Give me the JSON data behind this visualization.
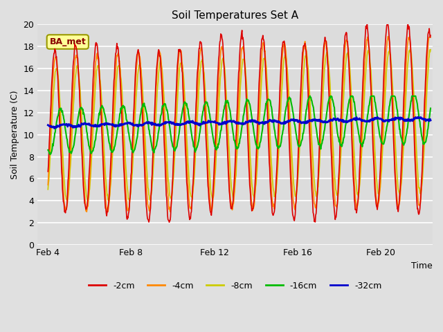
{
  "title": "Soil Temperatures Set A",
  "xlabel": "Time",
  "ylabel": "Soil Temperature (C)",
  "ylim": [
    0,
    20
  ],
  "xlim_days": [
    3.5,
    22.5
  ],
  "annotation": "BA_met",
  "legend_labels": [
    "-2cm",
    "-4cm",
    "-8cm",
    "-16cm",
    "-32cm"
  ],
  "legend_colors": [
    "#dd0000",
    "#ff8800",
    "#cccc00",
    "#00bb00",
    "#0000cc"
  ],
  "background_color": "#e0e0e0",
  "plot_bg_color": "#dcdcdc",
  "grid_color": "#ffffff",
  "xtick_labels": [
    "Feb 4",
    "Feb 8",
    "Feb 12",
    "Feb 16",
    "Feb 20"
  ],
  "xtick_positions": [
    4,
    8,
    12,
    16,
    20
  ],
  "yticks": [
    0,
    2,
    4,
    6,
    8,
    10,
    12,
    14,
    16,
    18,
    20
  ]
}
